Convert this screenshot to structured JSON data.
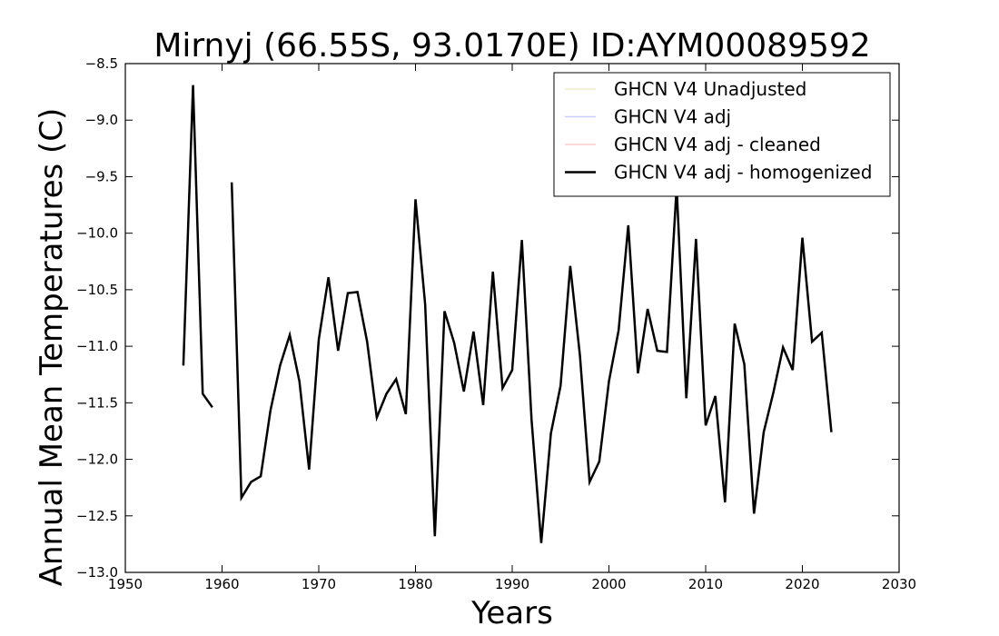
{
  "chart_data": {
    "type": "line",
    "title": "Mirnyj (66.55S, 93.0170E) ID:AYM00089592",
    "xlabel": "Years",
    "ylabel": "Annual Mean Temperatures (C)",
    "xlim": [
      1950,
      2030
    ],
    "ylim": [
      -13.0,
      -8.5
    ],
    "x_ticks": [
      1950,
      1960,
      1970,
      1980,
      1990,
      2000,
      2010,
      2020,
      2030
    ],
    "y_ticks": [
      -8.5,
      -9.0,
      -9.5,
      -10.0,
      -10.5,
      -11.0,
      -11.5,
      -12.0,
      -12.5,
      -13.0
    ],
    "x_tick_labels": [
      "1950",
      "1960",
      "1970",
      "1980",
      "1990",
      "2000",
      "2010",
      "2020",
      "2030"
    ],
    "y_tick_labels": [
      "−8.5",
      "−9.0",
      "−9.5",
      "−10.0",
      "−10.5",
      "−11.0",
      "−11.5",
      "−12.0",
      "−12.5",
      "−13.0"
    ],
    "grid": false,
    "legend_position": "top-right",
    "series": [
      {
        "name": "GHCN V4 Unadjusted",
        "color": "#eeeecc",
        "line_width": 1.5,
        "x": [],
        "y": []
      },
      {
        "name": "GHCN V4 adj",
        "color": "#ccccff",
        "line_width": 1.5,
        "x": [],
        "y": []
      },
      {
        "name": "GHCN V4 adj - cleaned",
        "color": "#ffcccc",
        "line_width": 1.5,
        "x": [],
        "y": []
      },
      {
        "name": "GHCN V4 adj - homogenized",
        "color": "#000000",
        "line_width": 2.5,
        "x": [
          1956,
          1957,
          1958,
          1959,
          null,
          1961,
          1962,
          1963,
          1964,
          1965,
          1966,
          1967,
          1968,
          1969,
          1970,
          1971,
          1972,
          1973,
          1974,
          1975,
          1976,
          1977,
          1978,
          1979,
          1980,
          1981,
          1982,
          1983,
          1984,
          1985,
          1986,
          1987,
          1988,
          1989,
          1990,
          1991,
          1992,
          1993,
          1994,
          1995,
          1996,
          1997,
          1998,
          1999,
          2000,
          2001,
          2002,
          2003,
          2004,
          2005,
          2006,
          2007,
          2008,
          2009,
          2010,
          2011,
          2012,
          2013,
          2014,
          2015,
          2016,
          2017,
          2018,
          2019,
          2020,
          2021,
          2022,
          2023
        ],
        "y": [
          -11.17,
          -8.69,
          -11.42,
          -11.54,
          null,
          -9.55,
          -12.34,
          -12.2,
          -12.15,
          -11.57,
          -11.17,
          -10.9,
          -11.31,
          -12.09,
          -10.94,
          -10.39,
          -11.04,
          -10.53,
          -10.52,
          -10.96,
          -11.63,
          -11.42,
          -11.29,
          -11.6,
          -9.7,
          -10.63,
          -12.68,
          -10.69,
          -10.97,
          -11.4,
          -10.87,
          -11.52,
          -10.34,
          -11.37,
          -11.21,
          -10.06,
          -11.65,
          -12.74,
          -11.77,
          -11.35,
          -10.29,
          -11.08,
          -12.2,
          -12.02,
          -11.31,
          -10.86,
          -9.93,
          -11.24,
          -10.67,
          -11.04,
          -11.05,
          -9.59,
          -11.46,
          -10.05,
          -11.7,
          -11.44,
          -12.38,
          -10.8,
          -11.16,
          -12.48,
          -11.76,
          -11.41,
          -11.01,
          -11.21,
          -10.04,
          -10.96,
          -10.88,
          -11.76
        ]
      }
    ]
  }
}
